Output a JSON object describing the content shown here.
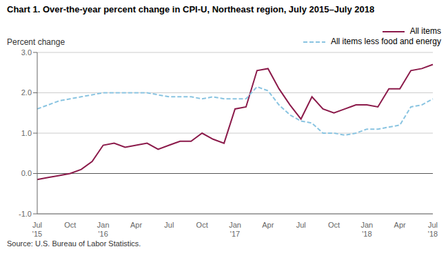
{
  "chart_data": {
    "type": "line",
    "title": "Chart 1. Over-the-year percent change in CPI-U, Northeast region, July 2015–July 2018",
    "y_label": "Percent change",
    "source": "Source: U.S. Bureau of Labor Statistics.",
    "categories": [
      "Jul\n'15",
      null,
      null,
      "Oct",
      null,
      null,
      "Jan\n'16",
      null,
      null,
      "Apr",
      null,
      null,
      "Jul",
      null,
      null,
      "Oct",
      null,
      null,
      "Jan\n'17",
      null,
      null,
      "Apr",
      null,
      null,
      "Jul",
      null,
      null,
      "Oct",
      null,
      null,
      "Jan\n'18",
      null,
      null,
      "Apr",
      null,
      null,
      "Jul\n'18"
    ],
    "series": [
      {
        "name": "All items",
        "color": "#8B1A4A",
        "line_style": "solid",
        "values": [
          -0.15,
          -0.1,
          -0.05,
          0.0,
          0.1,
          0.3,
          0.7,
          0.75,
          0.65,
          0.7,
          0.75,
          0.6,
          0.7,
          0.8,
          0.8,
          1.0,
          0.85,
          0.75,
          1.6,
          1.65,
          2.55,
          2.6,
          2.1,
          1.7,
          1.35,
          1.9,
          1.6,
          1.5,
          1.6,
          1.7,
          1.7,
          1.65,
          2.1,
          2.1,
          2.55,
          2.6,
          2.7
        ]
      },
      {
        "name": "All items less food and energy",
        "color": "#89C4E1",
        "line_style": "dashed",
        "values": [
          1.6,
          1.7,
          1.8,
          1.85,
          1.9,
          1.95,
          2.0,
          2.0,
          2.0,
          2.0,
          2.0,
          1.95,
          1.9,
          1.9,
          1.9,
          1.85,
          1.9,
          1.85,
          1.85,
          1.85,
          2.15,
          2.05,
          1.7,
          1.45,
          1.3,
          1.25,
          1.0,
          1.0,
          0.95,
          1.0,
          1.1,
          1.1,
          1.15,
          1.2,
          1.65,
          1.7,
          1.85
        ]
      }
    ],
    "ylim": [
      -1.0,
      3.0
    ],
    "yticks": [
      {
        "value": -1.0,
        "label": "-1.0"
      },
      {
        "value": 0,
        "label": "0.0"
      },
      {
        "value": 1.0,
        "label": "1.0"
      },
      {
        "value": 2.0,
        "label": "2.0"
      },
      {
        "value": 3.0,
        "label": "3.0"
      }
    ],
    "grid": true,
    "legend": "upper right"
  }
}
